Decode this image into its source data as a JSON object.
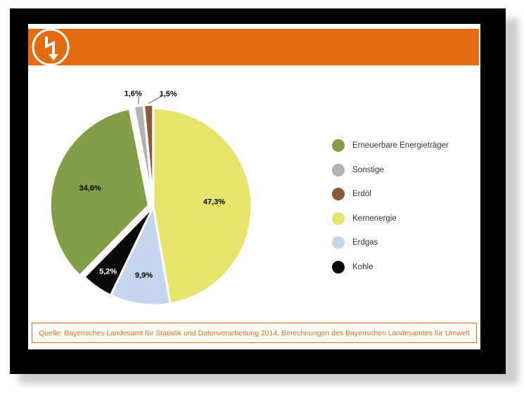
{
  "source": "Quelle: Bayerisches Landesamt für Statistik und Datenverarbeitung 2014, Berechnungen des Bayerischen Landesamtes für Umwelt",
  "chart_data": {
    "type": "pie",
    "title": "",
    "unit": "%",
    "legend_position": "right",
    "slices": [
      {
        "name": "Kernenergie",
        "value": 47.3,
        "label": "47,3%",
        "color": "#e7e46b",
        "label_color": "#000000"
      },
      {
        "name": "Erdgas",
        "value": 9.9,
        "label": "9,9%",
        "color": "#c4d5ee",
        "label_color": "#000000"
      },
      {
        "name": "Kohle",
        "value": 5.2,
        "label": "5,2%",
        "color": "#0a0a0a",
        "label_color": "#ffffff"
      },
      {
        "name": "Erneuerbare Energieträger",
        "value": 34.6,
        "label": "34,6%",
        "color": "#829f48",
        "label_color": "#000000"
      },
      {
        "name": "Sonstige",
        "value": 1.6,
        "label": "1,6%",
        "color": "#b2b2b2",
        "label_color": "#000000"
      },
      {
        "name": "Erdöl",
        "value": 1.5,
        "label": "1,5%",
        "color": "#8d5936",
        "label_color": "#000000"
      }
    ],
    "legend": [
      {
        "name": "Erneuerbare Energieträger",
        "color": "#829f48"
      },
      {
        "name": "Sonstige",
        "color": "#b2b2b2"
      },
      {
        "name": "Erdöl",
        "color": "#8d5936"
      },
      {
        "name": "Kernenergie",
        "color": "#e7e46b"
      },
      {
        "name": "Erdgas",
        "color": "#c4d5ee"
      },
      {
        "name": "Kohle",
        "color": "#0a0a0a"
      }
    ]
  }
}
